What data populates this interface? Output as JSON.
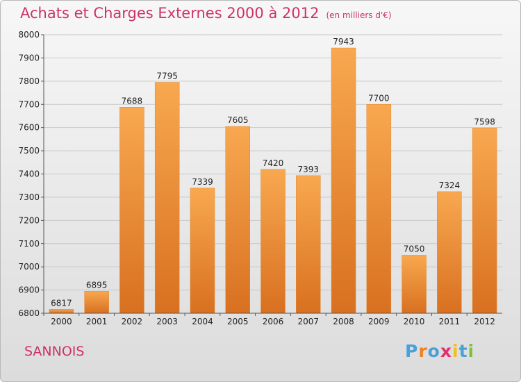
{
  "title": "Achats et Charges Externes 2000 à 2012",
  "unit": "(en milliers d'€)",
  "city": "SANNOIS",
  "logo": {
    "text": "Proxiti",
    "colors": [
      "#4aa0d8",
      "#f08020",
      "#4aa0d8",
      "#e03070",
      "#f0c020",
      "#4aa0d8",
      "#80c040"
    ]
  },
  "colors": {
    "bar_top": "#f8a850",
    "bar_bottom": "#d87020",
    "title": "#cc3366"
  },
  "chart_data": {
    "type": "bar",
    "title": "Achats et Charges Externes 2000 à 2012",
    "xlabel": "",
    "ylabel": "",
    "categories": [
      "2000",
      "2001",
      "2002",
      "2003",
      "2004",
      "2005",
      "2006",
      "2007",
      "2008",
      "2009",
      "2010",
      "2011",
      "2012"
    ],
    "values": [
      6817,
      6895,
      7688,
      7795,
      7339,
      7605,
      7420,
      7393,
      7943,
      7700,
      7050,
      7324,
      7598
    ],
    "ylim": [
      6800,
      8000
    ],
    "yticks": [
      6800,
      6900,
      7000,
      7100,
      7200,
      7300,
      7400,
      7500,
      7600,
      7700,
      7800,
      7900,
      8000
    ],
    "grid": true,
    "legend": "none"
  }
}
